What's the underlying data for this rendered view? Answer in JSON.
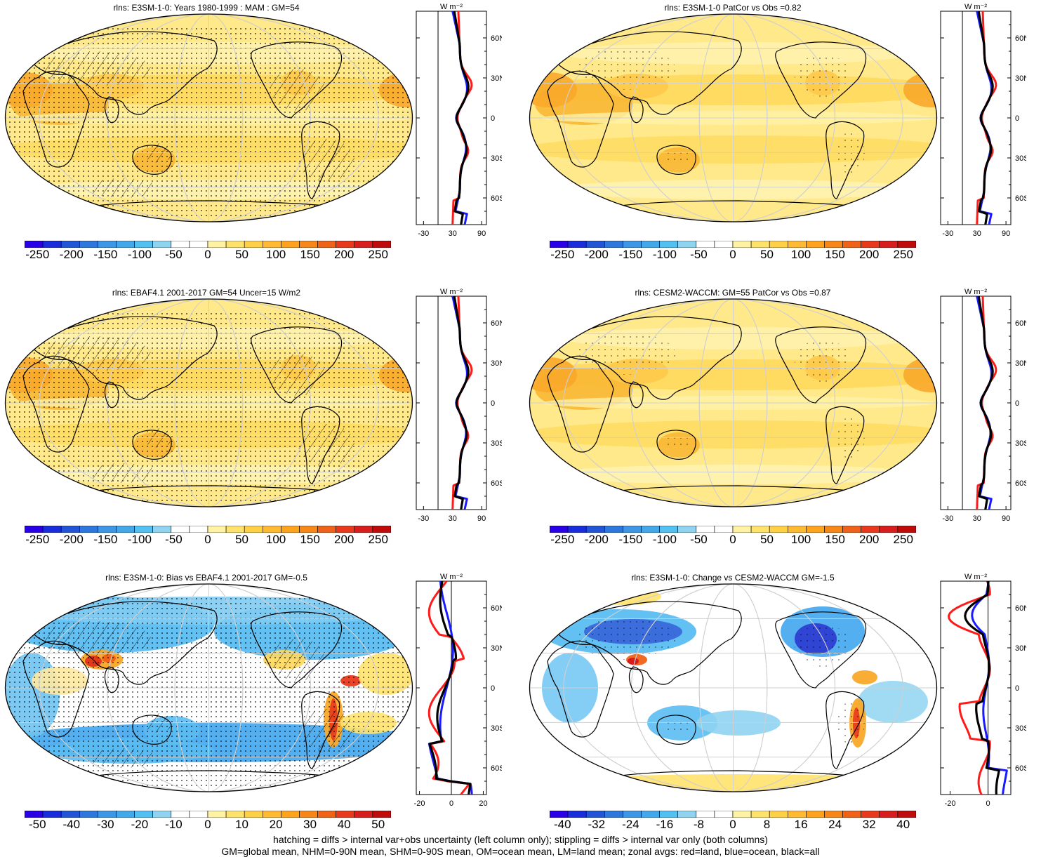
{
  "panels": [
    {
      "title": "rlns: E3SM-1-0: Years 1980-1999 : MAM : GM=54",
      "kind": "abs",
      "pattern": "hatch-stipple",
      "colorbar_ticks": [
        "-250",
        "-200",
        "-150",
        "-100",
        "-50",
        "0",
        "50",
        "100",
        "150",
        "200",
        "250"
      ],
      "zonal": {
        "unit": "W m-2",
        "xticks": [
          "-30",
          "30",
          "90"
        ],
        "xmin": -45,
        "xmax": 100,
        "yticks": [
          "60N",
          "30N",
          "0",
          "30S",
          "60S"
        ]
      }
    },
    {
      "title": "rlns: E3SM-1-0 PatCor vs Obs =0.82",
      "kind": "abs",
      "pattern": "stipple-light",
      "colorbar_ticks": [
        "-250",
        "-200",
        "-150",
        "-100",
        "-50",
        "0",
        "50",
        "100",
        "150",
        "200",
        "250"
      ],
      "zonal": {
        "unit": "W m-2",
        "xticks": [
          "-30",
          "30",
          "90"
        ],
        "xmin": -45,
        "xmax": 100,
        "yticks": [
          "60N",
          "30N",
          "0",
          "30S",
          "60S"
        ]
      }
    },
    {
      "title": "rlns: EBAF4.1 2001-2017 GM=54 Uncer=15 W/m2",
      "kind": "abs",
      "pattern": "hatch-stipple",
      "colorbar_ticks": [
        "-250",
        "-200",
        "-150",
        "-100",
        "-50",
        "0",
        "50",
        "100",
        "150",
        "200",
        "250"
      ],
      "zonal": {
        "unit": "W m-2",
        "xticks": [
          "-30",
          "30",
          "90"
        ],
        "xmin": -45,
        "xmax": 100,
        "yticks": [
          "60N",
          "30N",
          "0",
          "30S",
          "60S"
        ]
      }
    },
    {
      "title": "rlns: CESM2-WACCM: GM=55 PatCor vs Obs =0.87",
      "kind": "abs",
      "pattern": "stipple-light",
      "colorbar_ticks": [
        "-250",
        "-200",
        "-150",
        "-100",
        "-50",
        "0",
        "50",
        "100",
        "150",
        "200",
        "250"
      ],
      "zonal": {
        "unit": "W m-2",
        "xticks": [
          "-30",
          "30",
          "90"
        ],
        "xmin": -45,
        "xmax": 100,
        "yticks": [
          "60N",
          "30N",
          "0",
          "30S",
          "60S"
        ]
      }
    },
    {
      "title": "rlns: E3SM-1-0: Bias vs EBAF4.1 2001-2017 GM=-0.5",
      "kind": "bias",
      "pattern": "hatch-stipple",
      "colorbar_ticks": [
        "-50",
        "-40",
        "-30",
        "-20",
        "-10",
        "0",
        "10",
        "20",
        "30",
        "40",
        "50"
      ],
      "zonal": {
        "unit": "W m-2",
        "xticks": [
          "-20",
          "0",
          "20"
        ],
        "xmin": -22,
        "xmax": 22,
        "yticks": [
          "60N",
          "30N",
          "0",
          "30S",
          "60S"
        ]
      }
    },
    {
      "title": "rlns: E3SM-1-0: Change vs CESM2-WACCM GM=-1.5",
      "kind": "change",
      "pattern": "stipple-light",
      "colorbar_ticks": [
        "-40",
        "-32",
        "-24",
        "-16",
        "-8",
        "0",
        "8",
        "16",
        "24",
        "32",
        "40"
      ],
      "zonal": {
        "unit": "W m-2",
        "xticks": [
          "-20",
          "0"
        ],
        "xmin": -25,
        "xmax": 12,
        "yticks": [
          "60N",
          "30N",
          "0",
          "30S",
          "60S"
        ]
      }
    }
  ],
  "colorbar_colors": [
    "#2a00e6",
    "#1a2ddc",
    "#2255d6",
    "#2e78dd",
    "#3d97e6",
    "#42a8ea",
    "#52c0f0",
    "#8fd3f1",
    "#ffffff",
    "#ffffff",
    "#fff3a3",
    "#ffe26b",
    "#ffcf45",
    "#ffb932",
    "#ffa21e",
    "#f8871a",
    "#f06218",
    "#e8391c",
    "#d81d1d",
    "#c00b0b"
  ],
  "zonal_line_colors": {
    "land": "#ff1a1a",
    "ocean": "#1a1aff",
    "all": "#000000"
  },
  "footer": {
    "line1": "hatching = diffs > internal var+obs uncertainty (left column only); stippling = diffs > internal var only (both columns)",
    "line2": "GM=global mean, NHM=0-90N mean, SHM=0-90S mean, OM=ocean mean, LM=land mean; zonal avgs: red=land, blue=ocean, black=all"
  }
}
